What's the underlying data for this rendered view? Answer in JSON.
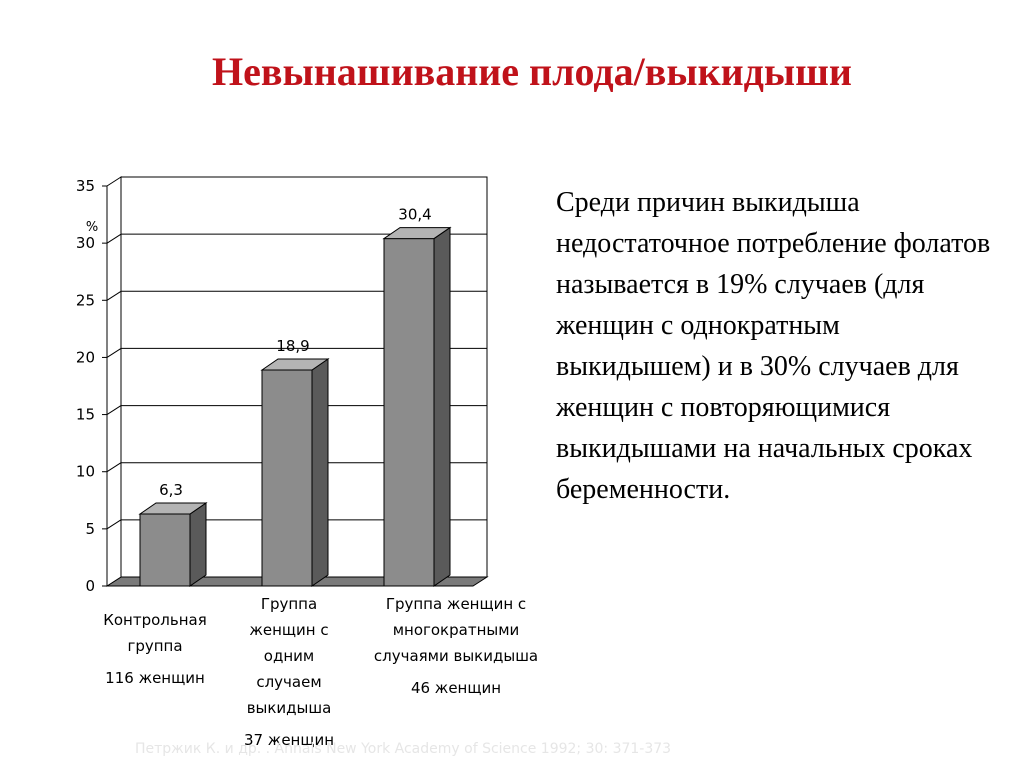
{
  "title": "Невынашивание плода/выкидыши",
  "description": "Среди причин выкидыша недостаточное потребление фолатов называется в 19% случаев (для женщин с однократным выкидышем) и  в  30% случаев для женщин с повторяющимися выкидышами на начальных сроках беременности.",
  "citation": "Петржик К. и др. . Annals New York Academy of Science 1992; 30: 371-373",
  "chart_data": {
    "type": "bar",
    "ylabel": "%",
    "ylim": [
      0,
      35
    ],
    "yticks": [
      "0",
      "5",
      "10",
      "15",
      "20",
      "25",
      "30",
      "35"
    ],
    "grid": true,
    "categories": [
      {
        "label": "Контрольная группа",
        "count": "116 женщин"
      },
      {
        "label": "Группа женщин с одним случаем выкидыша",
        "count": "37 женщин"
      },
      {
        "label": "Группа женщин с многократными случаями выкидыша",
        "count": "46 женщин"
      }
    ],
    "values": [
      6.3,
      18.9,
      30.4
    ],
    "value_labels": [
      "6,3",
      "18,9",
      "30,4"
    ],
    "colors": {
      "bar_front": "#8c8c8c",
      "bar_side": "#5a5a5a",
      "bar_top": "#b4b4b4",
      "floor": "#7a7a7a"
    }
  }
}
